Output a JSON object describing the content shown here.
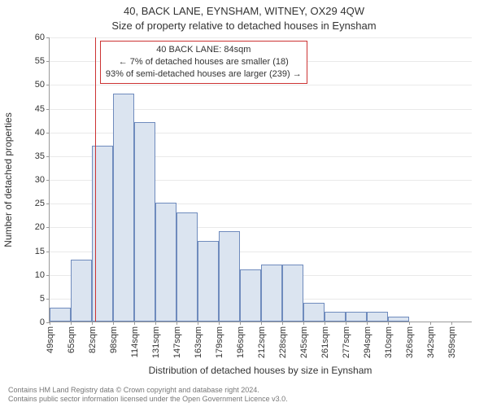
{
  "title_line1": "40, BACK LANE, EYNSHAM, WITNEY, OX29 4QW",
  "title_line2": "Size of property relative to detached houses in Eynsham",
  "ylabel": "Number of detached properties",
  "xlabel": "Distribution of detached houses by size in Eynsham",
  "chart": {
    "type": "histogram",
    "ylim": [
      0,
      60
    ],
    "ytick_step": 5,
    "x_bin_start": 49,
    "x_bin_width": 16.3,
    "x_bin_count": 20,
    "x_unit": "sqm",
    "bar_fill": "#dbe4f0",
    "bar_border": "#6f8bbd",
    "grid_color": "#e9e9e9",
    "axis_color": "#999999",
    "background": "#ffffff",
    "values": [
      3,
      13,
      37,
      48,
      42,
      25,
      23,
      17,
      19,
      11,
      12,
      12,
      4,
      2,
      2,
      2,
      1,
      0,
      0,
      0
    ],
    "marker_value": 84,
    "marker_color": "#cc3333"
  },
  "annotation": {
    "line1": "40 BACK LANE: 84sqm",
    "line2": "← 7% of detached houses are smaller (18)",
    "line3": "93% of semi-detached houses are larger (239) →",
    "border_color": "#cc3333",
    "background": "#ffffff"
  },
  "footer_line1": "Contains HM Land Registry data © Crown copyright and database right 2024.",
  "footer_line2": "Contains public sector information licensed under the Open Government Licence v3.0."
}
